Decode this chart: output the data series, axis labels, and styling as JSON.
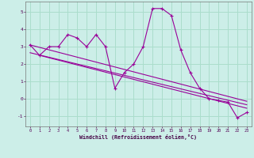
{
  "xlabel": "Windchill (Refroidissement éolien,°C)",
  "bg_color": "#cceee8",
  "grid_color": "#aaddcc",
  "line_color": "#990099",
  "x_ticks": [
    0,
    1,
    2,
    3,
    4,
    5,
    6,
    7,
    8,
    9,
    10,
    11,
    12,
    13,
    14,
    15,
    16,
    17,
    18,
    19,
    20,
    21,
    22,
    23
  ],
  "y_ticks": [
    -1,
    0,
    1,
    2,
    3,
    4,
    5
  ],
  "ylim": [
    -1.6,
    5.6
  ],
  "xlim": [
    -0.5,
    23.5
  ],
  "main_series_x": [
    0,
    1,
    2,
    3,
    4,
    5,
    6,
    7,
    8,
    9,
    10,
    11,
    12,
    13,
    14,
    15,
    16,
    17,
    18,
    19,
    20,
    21,
    22,
    23
  ],
  "main_series_y": [
    3.1,
    2.5,
    3.0,
    3.0,
    3.7,
    3.5,
    3.0,
    3.7,
    3.0,
    0.6,
    1.5,
    2.0,
    3.0,
    5.2,
    5.2,
    4.8,
    2.8,
    1.5,
    0.6,
    0.0,
    -0.1,
    -0.2,
    -1.1,
    -0.8
  ],
  "trend1_x": [
    0,
    23
  ],
  "trend1_y": [
    3.1,
    -0.15
  ],
  "trend2_x": [
    0,
    23
  ],
  "trend2_y": [
    2.65,
    -0.35
  ],
  "trend3_x": [
    1,
    23
  ],
  "trend3_y": [
    2.5,
    -0.55
  ]
}
